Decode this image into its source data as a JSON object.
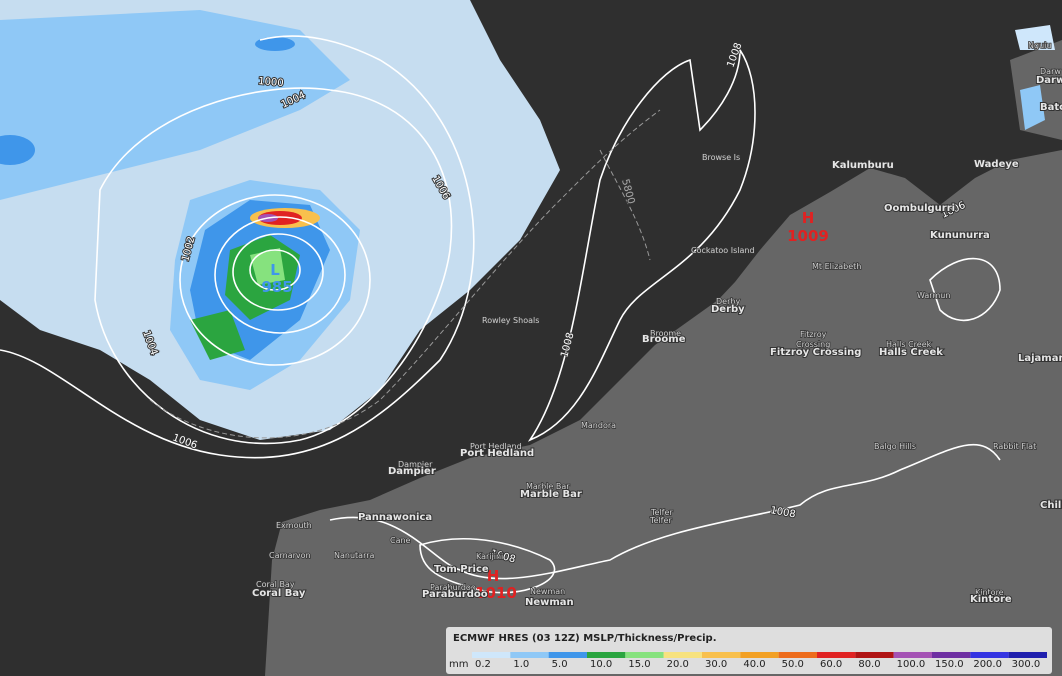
{
  "legend": {
    "title": "ECMWF HRES (03 12Z) MSLP/Thickness/Precip.",
    "unit": "mm",
    "items": [
      {
        "label": "0.2",
        "color": "#cfe7fb"
      },
      {
        "label": "1.0",
        "color": "#8fc8f6"
      },
      {
        "label": "5.0",
        "color": "#3f96ea"
      },
      {
        "label": "10.0",
        "color": "#2ba540"
      },
      {
        "label": "15.0",
        "color": "#86e27e"
      },
      {
        "label": "20.0",
        "color": "#f7e27f"
      },
      {
        "label": "30.0",
        "color": "#f8c04d"
      },
      {
        "label": "40.0",
        "color": "#f2a024"
      },
      {
        "label": "50.0",
        "color": "#ed6c1c"
      },
      {
        "label": "60.0",
        "color": "#e02222"
      },
      {
        "label": "80.0",
        "color": "#b01414"
      },
      {
        "label": "100.0",
        "color": "#a452b4"
      },
      {
        "label": "150.0",
        "color": "#6e2fa2"
      },
      {
        "label": "200.0",
        "color": "#3434e2"
      },
      {
        "label": "300.0",
        "color": "#1f1fae"
      }
    ]
  },
  "systems": [
    {
      "symbol": "L",
      "value": "985"
    },
    {
      "symbol": "H",
      "value": "1009"
    },
    {
      "symbol": "H",
      "value": "1010"
    }
  ],
  "isobar_labels": [
    "1008",
    "1004",
    "1006",
    "1002",
    "1004",
    "1006",
    "1008",
    "1008",
    "1008",
    "1006",
    "1000"
  ],
  "thickness_labels": [
    "5800"
  ],
  "places": [
    "Browse Is",
    "Kalumburu",
    "Wadeye",
    "Oombulgurri",
    "Kununurra",
    "Cockatoo Island",
    "Mt Elizabeth",
    "Warmun",
    "Derby",
    "Derby",
    "Broome",
    "Broome",
    "Rowley Shoals",
    "Fitzroy",
    "Crossing",
    "Fitzroy Crossing",
    "Halls Creek",
    "Halls Creek",
    "Lajaman",
    "Mandora",
    "Port Hedland",
    "Port Hedland",
    "Dampier",
    "Dampier",
    "Marble Bar",
    "Marble Bar",
    "Telfer",
    "Telfer",
    "Balgo Hills",
    "Rabbit Flat",
    "Pannawonica",
    "Exmouth",
    "Carnarvon",
    "Coral Bay",
    "Coral Bay",
    "Nanutarra",
    "Cane",
    "Karijini",
    "Tom Price",
    "Paraburdoo",
    "Paraburdoo",
    "Newman",
    "Newman",
    "Kintore",
    "Kintore",
    "Chilla",
    "Darw",
    "Darw",
    "Batc",
    "Nguiu"
  ]
}
